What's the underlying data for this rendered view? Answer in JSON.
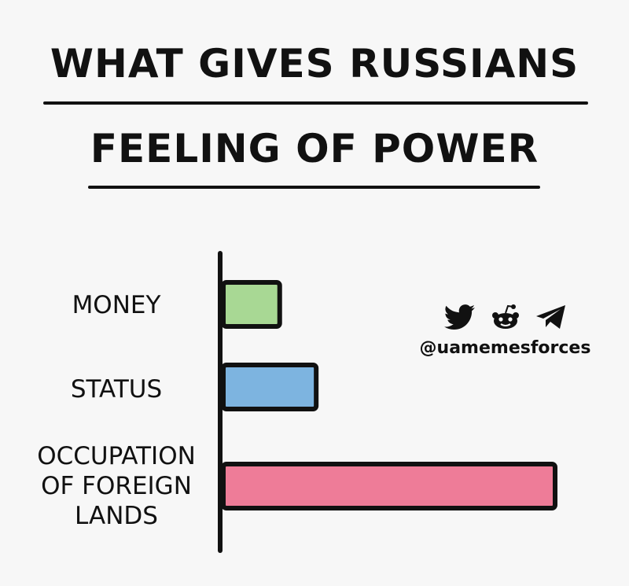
{
  "title_lines": [
    "WHAT GIVES RUSSIANS",
    "FEELING OF POWER"
  ],
  "handle": "@uamemesforces",
  "icons": [
    "twitter-icon",
    "reddit-icon",
    "telegram-icon"
  ],
  "chart_data": {
    "type": "bar",
    "orientation": "horizontal",
    "title": "WHAT GIVES RUSSIANS FEELING OF POWER",
    "categories": [
      "MONEY",
      "STATUS",
      "OCCUPATION OF FOREIGN LANDS"
    ],
    "category_lines": [
      [
        "MONEY"
      ],
      [
        "STATUS"
      ],
      [
        "OCCUPATION",
        "OF FOREIGN",
        "LANDS"
      ]
    ],
    "values": [
      17,
      28,
      100
    ],
    "colors": [
      "#a8d894",
      "#7db4e0",
      "#ee7c98"
    ],
    "xlim": [
      0,
      100
    ],
    "grid": false,
    "xlabel": "",
    "ylabel": ""
  }
}
